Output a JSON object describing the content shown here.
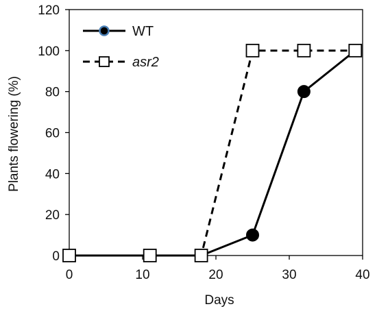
{
  "chart_data": {
    "type": "line",
    "title": "",
    "xlabel": "Days",
    "ylabel": "Plants flowering (%)",
    "xlim": [
      0,
      40
    ],
    "ylim": [
      0,
      120
    ],
    "xticks": [
      0,
      10,
      20,
      30,
      40
    ],
    "yticks": [
      0,
      20,
      40,
      60,
      80,
      100,
      120
    ],
    "grid": false,
    "legend_position": "top-left",
    "series": [
      {
        "name": "WT",
        "x": [
          0,
          11,
          18,
          25,
          32,
          39
        ],
        "y": [
          0,
          0,
          0,
          10,
          80,
          100
        ],
        "line_style": "solid",
        "marker": "filled-circle",
        "color": "#000000",
        "legend_marker_accent": "#4a7fb5"
      },
      {
        "name": "asr2",
        "x": [
          0,
          11,
          18,
          25,
          32,
          39
        ],
        "y": [
          0,
          0,
          0,
          100,
          100,
          100
        ],
        "line_style": "dashed",
        "marker": "open-square",
        "color": "#000000"
      }
    ]
  }
}
